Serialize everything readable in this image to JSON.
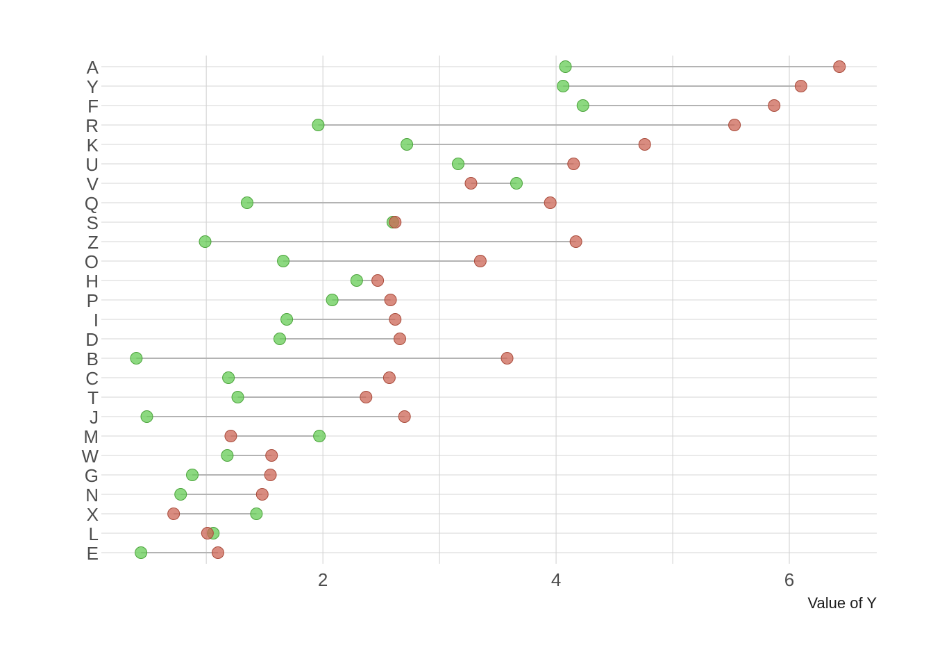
{
  "chart_data": {
    "type": "scatter",
    "subtype": "dumbbell",
    "title": "",
    "xlabel": "Value of Y",
    "ylabel": "",
    "xlim": [
      0.1,
      6.75
    ],
    "x_ticks": [
      2,
      4,
      6
    ],
    "x_grid": [
      1,
      2,
      3,
      4,
      5,
      6
    ],
    "grid": true,
    "legend": "none",
    "categories": [
      "A",
      "Y",
      "F",
      "R",
      "K",
      "U",
      "V",
      "Q",
      "S",
      "Z",
      "O",
      "H",
      "P",
      "I",
      "D",
      "B",
      "C",
      "T",
      "J",
      "M",
      "W",
      "G",
      "N",
      "X",
      "L",
      "E"
    ],
    "series": [
      {
        "color": "#66cc55",
        "values": [
          4.08,
          4.06,
          4.23,
          1.96,
          2.72,
          3.16,
          3.66,
          1.35,
          2.6,
          0.99,
          1.66,
          2.29,
          2.08,
          1.69,
          1.63,
          0.4,
          1.19,
          1.27,
          0.49,
          1.97,
          1.18,
          0.88,
          0.78,
          1.43,
          1.06,
          0.44
        ]
      },
      {
        "color": "#cc6655",
        "values": [
          6.43,
          6.1,
          5.87,
          5.53,
          4.76,
          4.15,
          3.27,
          3.95,
          2.62,
          4.17,
          3.35,
          2.47,
          2.58,
          2.62,
          2.66,
          3.58,
          2.57,
          2.37,
          2.7,
          1.21,
          1.56,
          1.55,
          1.48,
          0.72,
          1.01,
          1.1
        ]
      }
    ]
  }
}
